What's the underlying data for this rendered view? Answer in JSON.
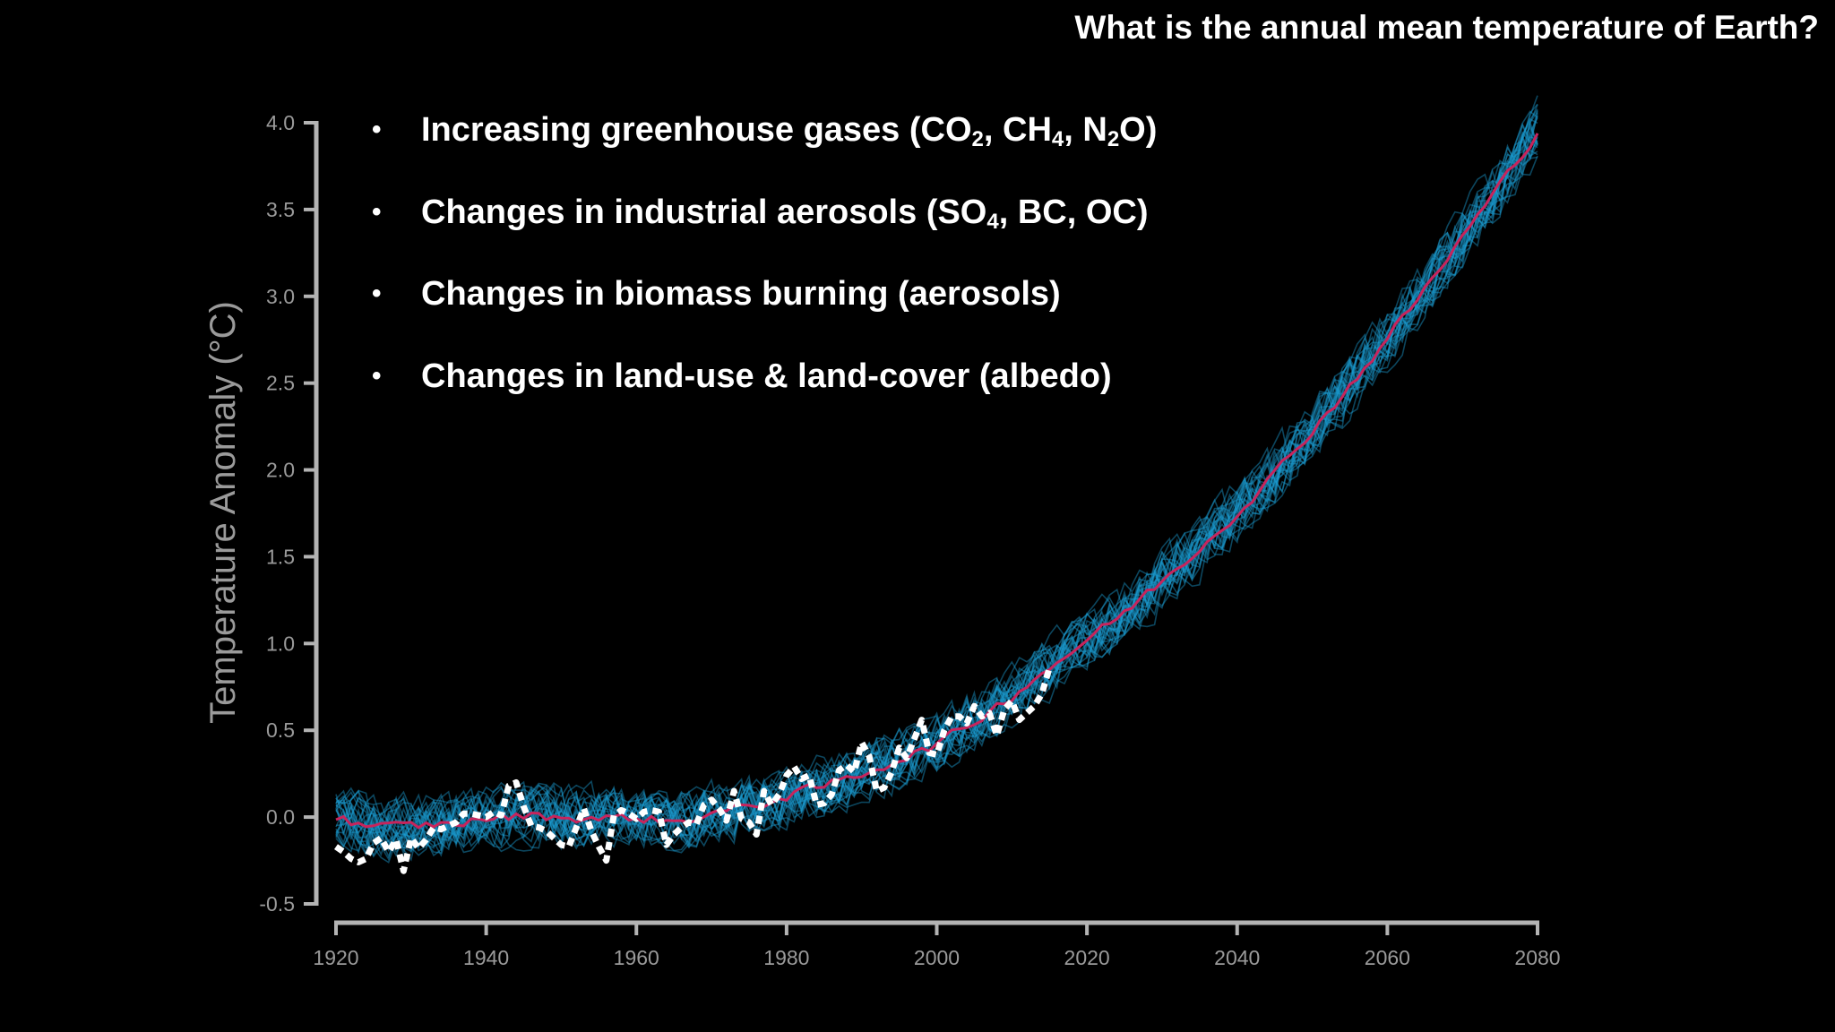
{
  "slide": {
    "title": "What is the annual mean temperature of Earth?",
    "bullets": [
      {
        "parts": [
          [
            "t",
            "Increasing greenhouse gases (CO"
          ],
          [
            "s",
            "2"
          ],
          [
            "t",
            ", CH"
          ],
          [
            "s",
            "4"
          ],
          [
            "t",
            ", N"
          ],
          [
            "s",
            "2"
          ],
          [
            "t",
            "O)"
          ]
        ]
      },
      {
        "parts": [
          [
            "t",
            "Changes in industrial aerosols (SO"
          ],
          [
            "s",
            "4"
          ],
          [
            "t",
            ", BC, OC)"
          ]
        ]
      },
      {
        "parts": [
          [
            "t",
            "Changes in biomass burning (aerosols)"
          ]
        ]
      },
      {
        "parts": [
          [
            "t",
            "Changes in land-use & land-cover  (albedo)"
          ]
        ]
      }
    ]
  },
  "chart_data": {
    "type": "line",
    "ylabel": "Temperature Anomaly (°C)",
    "xlabel": "",
    "xlim": [
      1920,
      2080
    ],
    "ylim": [
      -0.5,
      4.0
    ],
    "x_ticks": [
      1920,
      1940,
      1960,
      1980,
      2000,
      2020,
      2040,
      2060,
      2080
    ],
    "x_tick_labels": [
      "1920",
      "1940",
      "1960",
      "1980",
      "2000",
      "2020",
      "2040",
      "2060",
      "2080"
    ],
    "y_ticks": [
      -0.5,
      0.0,
      0.5,
      1.0,
      1.5,
      2.0,
      2.5,
      3.0,
      3.5,
      4.0
    ],
    "y_tick_labels": [
      "-0.5",
      "0.0",
      "0.5",
      "1.0",
      "1.5",
      "2.0",
      "2.5",
      "3.0",
      "3.5",
      "4.0"
    ],
    "grid": false,
    "colors": {
      "ensemble": "#1a9bd0",
      "ensemble_mean": "#c8245c",
      "observed": "#ffffff",
      "axis": "#b3b3b3"
    },
    "series": [
      {
        "style": "ensemble-mean",
        "x": [
          1920,
          1925,
          1930,
          1935,
          1940,
          1945,
          1950,
          1955,
          1960,
          1965,
          1970,
          1975,
          1980,
          1985,
          1990,
          1995,
          2000,
          2005,
          2010,
          2015,
          2020,
          2025,
          2030,
          2035,
          2040,
          2045,
          2050,
          2055,
          2060,
          2065,
          2070,
          2075,
          2080
        ],
        "y": [
          0.0,
          -0.06,
          -0.05,
          -0.04,
          -0.01,
          0.01,
          0.0,
          -0.01,
          0.0,
          -0.03,
          0.02,
          0.06,
          0.12,
          0.18,
          0.25,
          0.33,
          0.42,
          0.55,
          0.7,
          0.86,
          1.02,
          1.18,
          1.36,
          1.55,
          1.75,
          1.98,
          2.23,
          2.48,
          2.76,
          3.04,
          3.34,
          3.64,
          3.95
        ]
      },
      {
        "style": "observed-dashed",
        "x": [
          1920,
          1921,
          1922,
          1923,
          1924,
          1925,
          1926,
          1927,
          1928,
          1929,
          1930,
          1931,
          1932,
          1933,
          1934,
          1935,
          1936,
          1937,
          1938,
          1939,
          1940,
          1941,
          1942,
          1943,
          1944,
          1945,
          1946,
          1947,
          1948,
          1949,
          1950,
          1951,
          1952,
          1953,
          1954,
          1955,
          1956,
          1957,
          1958,
          1959,
          1960,
          1961,
          1962,
          1963,
          1964,
          1965,
          1966,
          1967,
          1968,
          1969,
          1970,
          1971,
          1972,
          1973,
          1974,
          1975,
          1976,
          1977,
          1978,
          1979,
          1980,
          1981,
          1982,
          1983,
          1984,
          1985,
          1986,
          1987,
          1988,
          1989,
          1990,
          1991,
          1992,
          1993,
          1994,
          1995,
          1996,
          1997,
          1998,
          1999,
          2000,
          2001,
          2002,
          2003,
          2004,
          2005,
          2006,
          2007,
          2008,
          2009,
          2010,
          2011,
          2012,
          2013,
          2014,
          2015
        ],
        "y": [
          -0.17,
          -0.2,
          -0.24,
          -0.26,
          -0.24,
          -0.15,
          -0.12,
          -0.2,
          -0.13,
          -0.31,
          -0.12,
          -0.18,
          -0.13,
          -0.06,
          -0.07,
          -0.05,
          -0.03,
          0.02,
          0.02,
          0.01,
          0.0,
          0.03,
          0.01,
          0.18,
          0.2,
          0.06,
          -0.05,
          -0.06,
          -0.08,
          -0.12,
          -0.16,
          -0.17,
          -0.06,
          0.05,
          -0.08,
          -0.17,
          -0.25,
          0.01,
          0.04,
          0.02,
          -0.01,
          0.03,
          0.04,
          0.03,
          -0.16,
          -0.1,
          -0.06,
          -0.03,
          -0.04,
          0.07,
          0.1,
          0.05,
          -0.02,
          0.15,
          -0.01,
          -0.03,
          -0.1,
          0.15,
          0.07,
          0.13,
          0.24,
          0.29,
          0.22,
          0.24,
          0.07,
          0.08,
          0.13,
          0.27,
          0.3,
          0.26,
          0.43,
          0.35,
          0.15,
          0.17,
          0.26,
          0.4,
          0.34,
          0.45,
          0.56,
          0.37,
          0.36,
          0.5,
          0.58,
          0.58,
          0.54,
          0.64,
          0.58,
          0.6,
          0.47,
          0.62,
          0.67,
          0.56,
          0.6,
          0.64,
          0.71,
          0.86
        ]
      }
    ]
  }
}
